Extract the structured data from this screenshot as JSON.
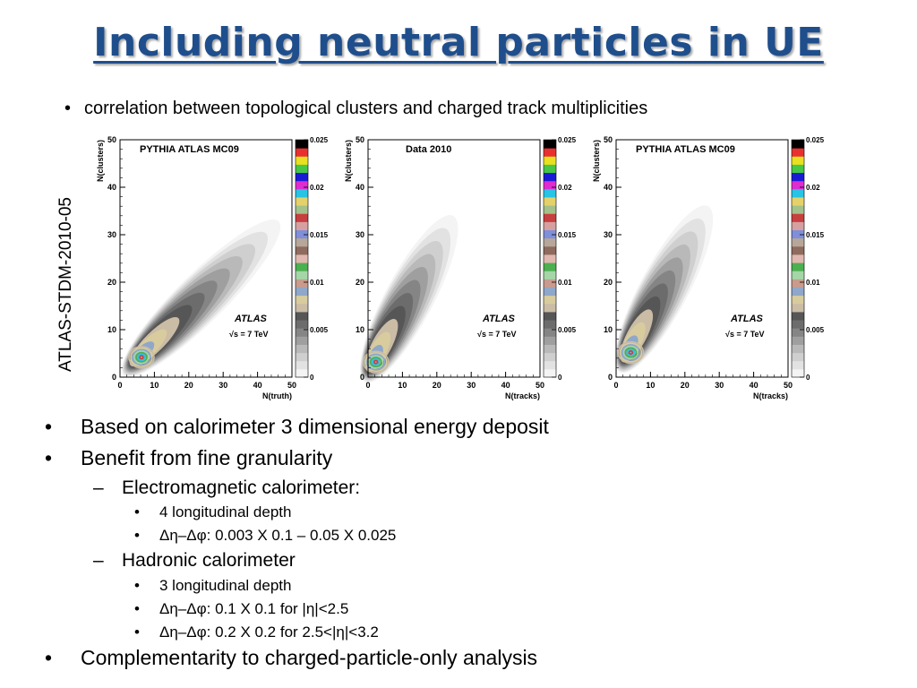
{
  "slide": {
    "title": "Including neutral particles in UE",
    "intro_bullet": "correlation between topological clusters and charged track multiplicities",
    "side_label": "ATLAS-STDM-2010-05",
    "bullets": [
      {
        "level": 1,
        "text": "Based on calorimeter 3 dimensional energy deposit"
      },
      {
        "level": 1,
        "text": "Benefit from fine granularity"
      },
      {
        "level": 2,
        "text": "Electromagnetic calorimeter:"
      },
      {
        "level": 3,
        "text": "4 longitudinal depth"
      },
      {
        "level": 3,
        "text": "Δη–Δφ: 0.003 X 0.1 – 0.05 X 0.025"
      },
      {
        "level": 2,
        "text": "Hadronic calorimeter"
      },
      {
        "level": 3,
        "text": "3 longitudinal depth"
      },
      {
        "level": 3,
        "text": "Δη–Δφ: 0.1 X 0.1 for |η|<2.5"
      },
      {
        "level": 3,
        "text": "Δη–Δφ: 0.2 X 0.2 for 2.5<|η|<3.2"
      },
      {
        "level": 1,
        "text": "Complementarity to charged-particle-only analysis"
      }
    ],
    "bullet_marks": {
      "1": "•",
      "2": "–",
      "3": "•"
    }
  },
  "chart_data": [
    {
      "type": "heatmap",
      "title": "PYTHIA ATLAS MC09",
      "xlabel": "N(truth)",
      "ylabel": "N(clusters)",
      "xlim": [
        0,
        50
      ],
      "ylim": [
        0,
        50
      ],
      "x_ticks": [
        0,
        10,
        20,
        30,
        40,
        50
      ],
      "y_ticks": [
        0,
        10,
        20,
        30,
        40,
        50
      ],
      "colorbar_range": [
        0,
        0.025
      ],
      "colorbar_ticks": [
        "0",
        "0.005",
        "0.01",
        "0.015",
        "0.02",
        "0.025"
      ],
      "annotation": [
        "ATLAS",
        "√s = 7 TeV"
      ],
      "distribution": {
        "peak_x": 6,
        "peak_y": 4,
        "ridge_end_x": 45,
        "ridge_end_y": 32
      }
    },
    {
      "type": "heatmap",
      "title": "Data 2010",
      "xlabel": "N(tracks)",
      "ylabel": "N(clusters)",
      "xlim": [
        0,
        50
      ],
      "ylim": [
        0,
        50
      ],
      "x_ticks": [
        0,
        10,
        20,
        30,
        40,
        50
      ],
      "y_ticks": [
        0,
        10,
        20,
        30,
        40,
        50
      ],
      "colorbar_range": [
        0,
        0.025
      ],
      "colorbar_ticks": [
        "0",
        "0.005",
        "0.01",
        "0.015",
        "0.02",
        "0.025"
      ],
      "annotation": [
        "ATLAS",
        "√s = 7 TeV"
      ],
      "distribution": {
        "peak_x": 2,
        "peak_y": 3,
        "ridge_end_x": 24,
        "ridge_end_y": 33
      }
    },
    {
      "type": "heatmap",
      "title": "PYTHIA ATLAS MC09",
      "xlabel": "N(tracks)",
      "ylabel": "N(clusters)",
      "xlim": [
        0,
        50
      ],
      "ylim": [
        0,
        50
      ],
      "x_ticks": [
        0,
        10,
        20,
        30,
        40,
        50
      ],
      "y_ticks": [
        0,
        10,
        20,
        30,
        40,
        50
      ],
      "colorbar_range": [
        0,
        0.025
      ],
      "colorbar_ticks": [
        "0",
        "0.005",
        "0.01",
        "0.015",
        "0.02",
        "0.025"
      ],
      "annotation": [
        "ATLAS",
        "√s = 7 TeV"
      ],
      "distribution": {
        "peak_x": 4,
        "peak_y": 5,
        "ridge_end_x": 26,
        "ridge_end_y": 35
      }
    }
  ],
  "colors": {
    "title": "#1f4e8c",
    "palette": [
      "#f4f4f4",
      "#e2e2e2",
      "#cfcfcf",
      "#b9b9b9",
      "#9f9f9f",
      "#858585",
      "#6c6c6c",
      "#565656",
      "#cbbca6",
      "#d8cc9e",
      "#8fa7c9",
      "#c89b8e",
      "#a5d6a7",
      "#4caf50",
      "#e0b8b0",
      "#8e6b5e",
      "#b7a79a",
      "#7f8fd9",
      "#d6a0a0",
      "#c83f3f",
      "#a3c18a",
      "#e4d16a",
      "#27c4e6",
      "#e02bd0",
      "#1a1ad6",
      "#46c846",
      "#e8e020",
      "#e83030",
      "#000000"
    ]
  }
}
